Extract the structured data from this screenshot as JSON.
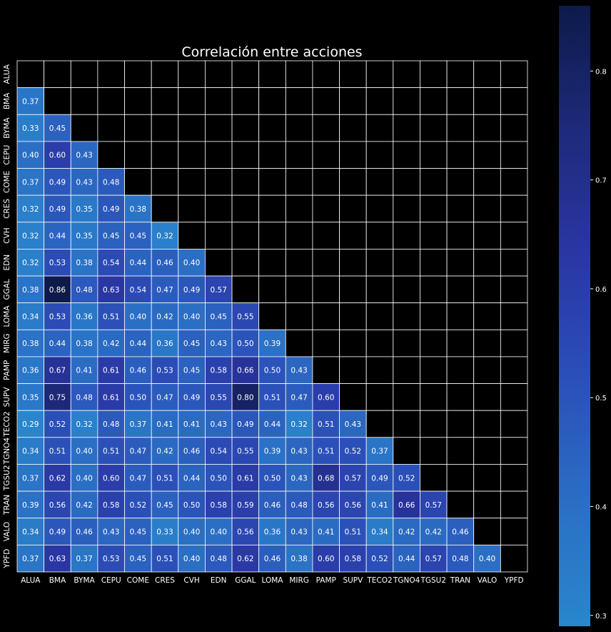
{
  "chart_data": {
    "type": "heatmap",
    "title": "Correlación entre acciones",
    "xlabel": "",
    "ylabel": "",
    "mask": "upper-triangle-including-diagonal",
    "labels": [
      "ALUA",
      "BMA",
      "BYMA",
      "CEPU",
      "COME",
      "CRES",
      "CVH",
      "EDN",
      "GGAL",
      "LOMA",
      "MIRG",
      "PAMP",
      "SUPV",
      "TECO2",
      "TGNO4",
      "TGSU2",
      "TRAN",
      "VALO",
      "YPFD"
    ],
    "rows": [
      [],
      [
        "0.37"
      ],
      [
        "0.33",
        "0.45"
      ],
      [
        "0.40",
        "0.60",
        "0.43"
      ],
      [
        "0.37",
        "0.49",
        "0.43",
        "0.48"
      ],
      [
        "0.32",
        "0.49",
        "0.35",
        "0.49",
        "0.38"
      ],
      [
        "0.32",
        "0.44",
        "0.35",
        "0.45",
        "0.45",
        "0.32"
      ],
      [
        "0.32",
        "0.53",
        "0.38",
        "0.54",
        "0.44",
        "0.46",
        "0.40"
      ],
      [
        "0.38",
        "0.86",
        "0.48",
        "0.63",
        "0.54",
        "0.47",
        "0.49",
        "0.57"
      ],
      [
        "0.34",
        "0.53",
        "0.36",
        "0.51",
        "0.40",
        "0.42",
        "0.40",
        "0.45",
        "0.55"
      ],
      [
        "0.38",
        "0.44",
        "0.38",
        "0.42",
        "0.44",
        "0.36",
        "0.45",
        "0.43",
        "0.50",
        "0.39"
      ],
      [
        "0.36",
        "0.67",
        "0.41",
        "0.61",
        "0.46",
        "0.53",
        "0.45",
        "0.58",
        "0.66",
        "0.50",
        "0.43"
      ],
      [
        "0.35",
        "0.75",
        "0.48",
        "0.61",
        "0.50",
        "0.47",
        "0.49",
        "0.55",
        "0.80",
        "0.51",
        "0.47",
        "0.60"
      ],
      [
        "0.29",
        "0.52",
        "0.32",
        "0.48",
        "0.37",
        "0.41",
        "0.41",
        "0.43",
        "0.49",
        "0.44",
        "0.32",
        "0.51",
        "0.43"
      ],
      [
        "0.34",
        "0.51",
        "0.40",
        "0.51",
        "0.47",
        "0.42",
        "0.46",
        "0.54",
        "0.55",
        "0.39",
        "0.43",
        "0.51",
        "0.52",
        "0.37"
      ],
      [
        "0.37",
        "0.62",
        "0.40",
        "0.60",
        "0.47",
        "0.51",
        "0.44",
        "0.50",
        "0.61",
        "0.50",
        "0.43",
        "0.68",
        "0.57",
        "0.49",
        "0.52"
      ],
      [
        "0.39",
        "0.56",
        "0.42",
        "0.58",
        "0.52",
        "0.45",
        "0.50",
        "0.58",
        "0.59",
        "0.46",
        "0.48",
        "0.56",
        "0.56",
        "0.41",
        "0.66",
        "0.57"
      ],
      [
        "0.34",
        "0.49",
        "0.46",
        "0.43",
        "0.45",
        "0.33",
        "0.40",
        "0.40",
        "0.56",
        "0.36",
        "0.43",
        "0.41",
        "0.51",
        "0.34",
        "0.42",
        "0.42",
        "0.46"
      ],
      [
        "0.37",
        "0.63",
        "0.37",
        "0.53",
        "0.45",
        "0.51",
        "0.40",
        "0.48",
        "0.62",
        "0.46",
        "0.38",
        "0.60",
        "0.58",
        "0.52",
        "0.44",
        "0.57",
        "0.48",
        "0.40"
      ]
    ],
    "colorbar": {
      "range": [
        0.29,
        0.86
      ],
      "ticks": [
        "0.3",
        "0.4",
        "0.5",
        "0.6",
        "0.7",
        "0.8"
      ],
      "colormap": [
        "#2986cc",
        "#2b6ec4",
        "#2b4fb8",
        "#2a36a4",
        "#1e2a7a",
        "#0d1a4a"
      ]
    },
    "grid": true,
    "background": "#000000",
    "gridline_color": "#ffffff"
  }
}
